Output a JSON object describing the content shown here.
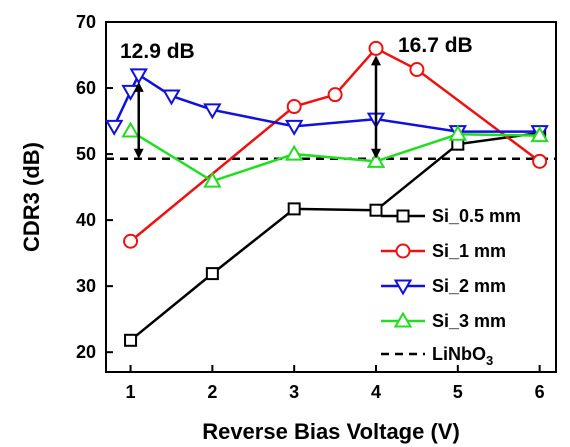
{
  "chart_data": {
    "type": "line",
    "xlabel": "Reverse Bias Voltage (V)",
    "ylabel": "CDR3 (dB)",
    "xlim": [
      0.7,
      6.2
    ],
    "ylim": [
      17,
      70
    ],
    "x_ticks": [
      1,
      2,
      3,
      4,
      5,
      6
    ],
    "y_ticks": [
      20,
      30,
      40,
      50,
      60,
      70
    ],
    "series": [
      {
        "name": "Si_0.5 mm",
        "color": "#000000",
        "marker": "square",
        "x": [
          1,
          2,
          3,
          4,
          5,
          6
        ],
        "y": [
          21.8,
          31.9,
          41.7,
          41.5,
          51.5,
          53.2
        ]
      },
      {
        "name": "Si_1 mm",
        "color": "#ee1111",
        "marker": "circle",
        "x": [
          1,
          3,
          3.5,
          4,
          4.5,
          6
        ],
        "y": [
          36.8,
          57.2,
          59.0,
          66.0,
          62.8,
          48.9
        ]
      },
      {
        "name": "Si_2 mm",
        "color": "#1111dd",
        "marker": "triangle-down",
        "x": [
          0.8,
          1,
          1.1,
          1.5,
          2,
          3,
          4,
          5,
          6
        ],
        "y": [
          54.2,
          59.5,
          62.0,
          58.8,
          56.7,
          54.2,
          55.3,
          53.4,
          53.4
        ]
      },
      {
        "name": "Si_3 mm",
        "color": "#22dd22",
        "marker": "triangle-up",
        "x": [
          1,
          2,
          3,
          4,
          5,
          6
        ],
        "y": [
          53.5,
          45.9,
          50.0,
          48.9,
          53.0,
          52.8
        ]
      },
      {
        "name": "LiNbO",
        "name_subscript": "3",
        "color": "#000000",
        "dashed": true,
        "y_constant": 49.3
      }
    ],
    "annotations": [
      {
        "text": "12.9 dB",
        "arrow_x": 1.1,
        "arrow_y": [
          49.3,
          62.0
        ]
      },
      {
        "text": "16.7 dB",
        "arrow_x": 4,
        "arrow_y": [
          49.3,
          66.0
        ]
      }
    ],
    "legend_position": "bottom-right",
    "grid": false
  }
}
